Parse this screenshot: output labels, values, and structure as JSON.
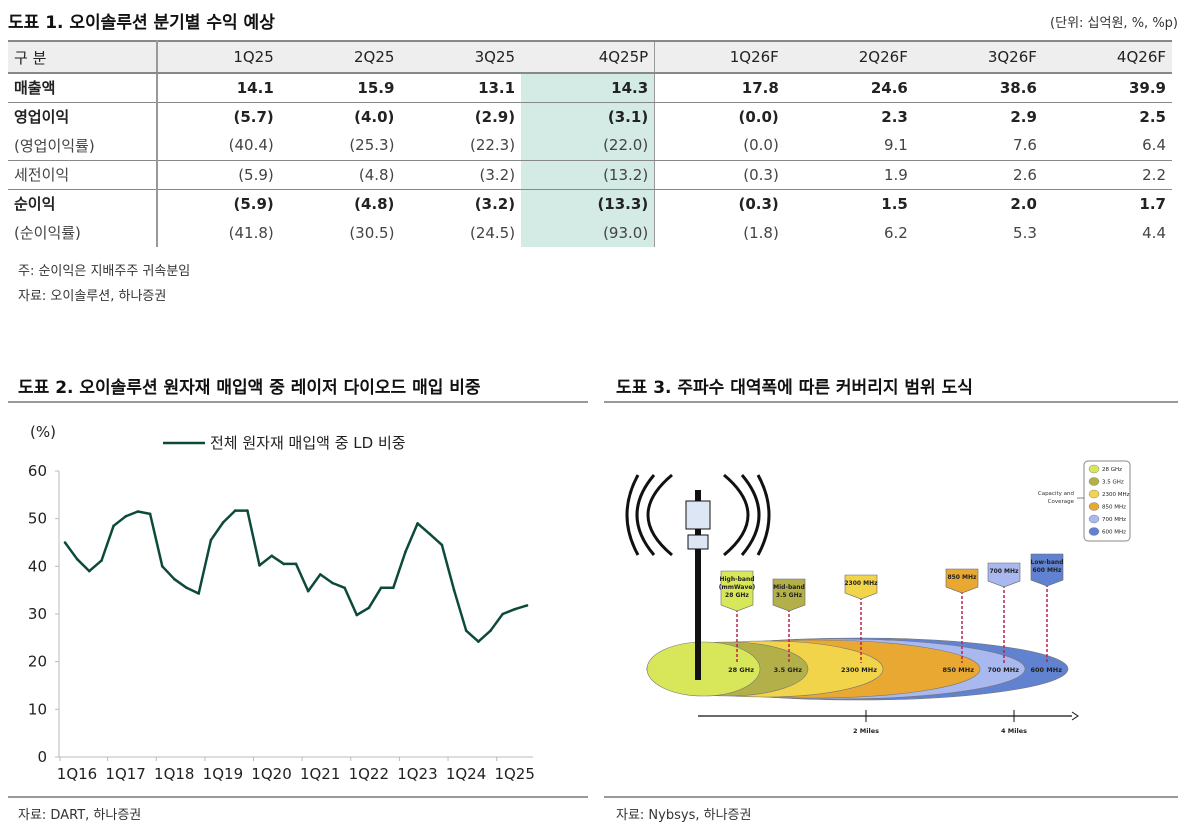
{
  "table1": {
    "title": "도표 1. 오이솔루션 분기별 수익 예상",
    "unit": "(단위: 십억원, %, %p)",
    "columns": [
      "구 분",
      "1Q25",
      "2Q25",
      "3Q25",
      "4Q25P",
      "1Q26F",
      "2Q26F",
      "3Q26F",
      "4Q26F"
    ],
    "rows": [
      {
        "label": "매출액",
        "values": [
          "14.1",
          "15.9",
          "13.1",
          "14.3",
          "17.8",
          "24.6",
          "38.6",
          "39.9"
        ]
      },
      {
        "label": "영업이익",
        "values": [
          "(5.7)",
          "(4.0)",
          "(2.9)",
          "(3.1)",
          "(0.0)",
          "2.3",
          "2.9",
          "2.5"
        ]
      },
      {
        "label": "(영업이익률)",
        "values": [
          "(40.4)",
          "(25.3)",
          "(22.3)",
          "(22.0)",
          "(0.0)",
          "9.1",
          "7.6",
          "6.4"
        ]
      },
      {
        "label": "세전이익",
        "values": [
          "(5.9)",
          "(4.8)",
          "(3.2)",
          "(13.2)",
          "(0.3)",
          "1.9",
          "2.6",
          "2.2"
        ]
      },
      {
        "label": "순이익",
        "values": [
          "(5.9)",
          "(4.8)",
          "(3.2)",
          "(13.3)",
          "(0.3)",
          "1.5",
          "2.0",
          "1.7"
        ]
      },
      {
        "label": "(순이익률)",
        "values": [
          "(41.8)",
          "(30.5)",
          "(24.5)",
          "(93.0)",
          "(1.8)",
          "6.2",
          "5.3",
          "4.4"
        ]
      }
    ],
    "highlight_color": "#d3ebe4",
    "note": "주: 순이익은 지배주주 귀속분임",
    "source": "자료: 오이솔루션, 하나증권"
  },
  "chart2": {
    "title": "도표 2. 오이솔루션 원자재 매입액 중 레이저 다이오드 매입 비중",
    "source": "자료: DART, 하나증권"
  },
  "chart_data": {
    "type": "line",
    "ylabel": "(%)",
    "ylim": [
      0,
      60
    ],
    "yticks": [
      "0",
      "10",
      "20",
      "30",
      "40",
      "50",
      "60"
    ],
    "xticks": [
      "1Q16",
      "1Q17",
      "1Q18",
      "1Q19",
      "1Q20",
      "1Q21",
      "1Q22",
      "1Q23",
      "1Q24",
      "1Q25"
    ],
    "grid": false,
    "legend": "top",
    "x": [
      "1Q16",
      "2Q16",
      "3Q16",
      "4Q16",
      "1Q17",
      "2Q17",
      "3Q17",
      "4Q17",
      "1Q18",
      "2Q18",
      "3Q18",
      "4Q18",
      "1Q19",
      "2Q19",
      "3Q19",
      "4Q19",
      "1Q20",
      "2Q20",
      "3Q20",
      "4Q20",
      "1Q21",
      "2Q21",
      "3Q21",
      "4Q21",
      "1Q22",
      "2Q22",
      "3Q22",
      "4Q22",
      "1Q23",
      "2Q23",
      "3Q23",
      "4Q23",
      "1Q24",
      "2Q24",
      "3Q24",
      "4Q24",
      "1Q25",
      "2Q25",
      "3Q25"
    ],
    "series": [
      {
        "name": "전체 원자재 매입액 중 LD 비중",
        "color": "#0d4a3c",
        "values": [
          45,
          41.5,
          39,
          41.2,
          48.5,
          50.5,
          51.5,
          51,
          40,
          37.3,
          35.5,
          34.3,
          45.5,
          49.2,
          51.7,
          51.7,
          40.2,
          42.2,
          40.5,
          40.5,
          34.8,
          38.3,
          36.5,
          35.5,
          29.8,
          31.3,
          35.5,
          35.5,
          43,
          49,
          46.8,
          44.5,
          35,
          26.5,
          24.2,
          26.5,
          30,
          31,
          31.8
        ]
      }
    ]
  },
  "diagram3": {
    "title": "도표 3. 주파수 대역폭에 따른 커버리지 범위 도식",
    "source": "자료: Nybsys, 하나증권",
    "legend_caption": [
      "Capacity and",
      "Coverage"
    ],
    "bands": [
      {
        "name": "28 GHz",
        "tag": [
          "High-band",
          "(mmWave)",
          "28 GHz"
        ],
        "color": "#d8e65a"
      },
      {
        "name": "3.5 GHz",
        "tag": [
          "Mid-band",
          "3.5 GHz"
        ],
        "color": "#b3b04a"
      },
      {
        "name": "2300 MHz",
        "tag": [
          "2300 MHz"
        ],
        "color": "#f2d44a"
      },
      {
        "name": "850 MHz",
        "tag": [
          "850 MHz"
        ],
        "color": "#e8a832"
      },
      {
        "name": "700 MHz",
        "tag": [
          "700 MHz"
        ],
        "color": "#a9b8ef"
      },
      {
        "name": "600 MHz",
        "tag": [
          "Low-band",
          "600 MHz"
        ],
        "color": "#6082d0"
      }
    ],
    "axis_labels": [
      "2 Miles",
      "4 Miles"
    ]
  }
}
